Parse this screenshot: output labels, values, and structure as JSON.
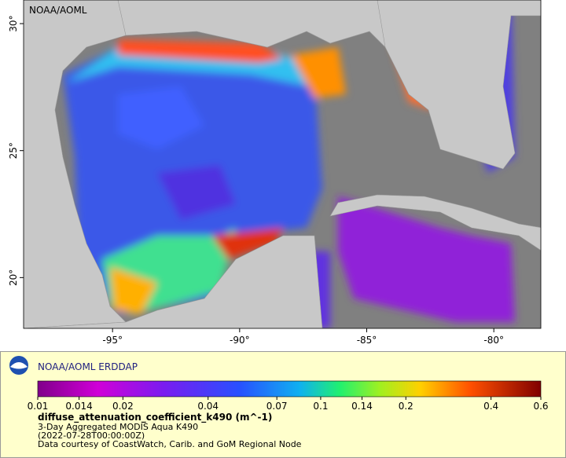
{
  "map": {
    "watermark": "NOAA/AOML",
    "xlim": [
      -98.5,
      -78.15
    ],
    "ylim": [
      18,
      30.93
    ],
    "xticks": [
      {
        "value": -95,
        "label": "-95°"
      },
      {
        "value": -90,
        "label": "-90°"
      },
      {
        "value": -85,
        "label": "-85°"
      },
      {
        "value": -80,
        "label": "-80°"
      }
    ],
    "yticks": [
      {
        "value": 20,
        "label": "20°"
      },
      {
        "value": 25,
        "label": "25°"
      },
      {
        "value": 30,
        "label": "30°"
      }
    ]
  },
  "legend": {
    "title": "NOAA/AOML ERDDAP",
    "colorbar": {
      "lim": [
        0.01,
        0.6
      ],
      "log_scale": true,
      "ticks": [
        0.01,
        0.014,
        0.02,
        0.04,
        0.07,
        0.1,
        0.14,
        0.2,
        0.4,
        0.6
      ]
    },
    "variable": "diffuse_attenuation_coefficient_k490 (m^-1)",
    "dataset": "3-Day Aggregated MODIS Aqua K490",
    "time": "(2022-07-28T00:00:00Z)",
    "credit": "Data courtesy of CoastWatch, Carib. and GoM Regional Node"
  }
}
